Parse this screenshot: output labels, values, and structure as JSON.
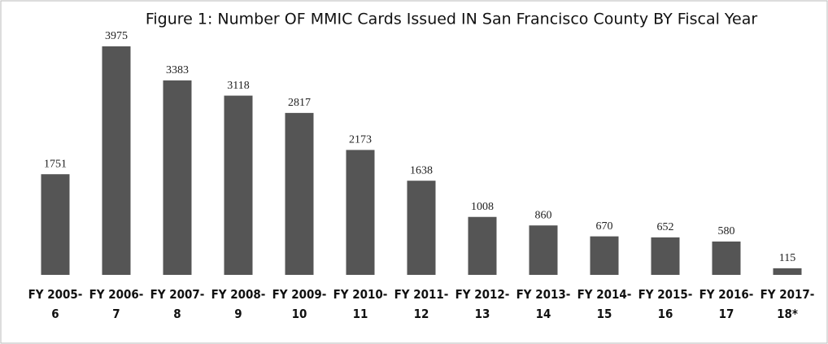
{
  "chart_data": {
    "type": "bar",
    "title": "Figure 1: Number OF MMIC Cards Issued IN San Francisco County BY Fiscal Year",
    "categories": [
      "FY 2005-6",
      "FY 2006-7",
      "FY 2007-8",
      "FY 2008-9",
      "FY 2009-10",
      "FY 2010-11",
      "FY 2011-12",
      "FY 2012-13",
      "FY 2013-14",
      "FY 2014-15",
      "FY 2015-16",
      "FY 2016-17",
      "FY 2017-18*"
    ],
    "values": [
      1751,
      3975,
      3383,
      3118,
      2817,
      2173,
      1638,
      1008,
      860,
      670,
      652,
      580,
      115
    ],
    "color": "#555555"
  }
}
